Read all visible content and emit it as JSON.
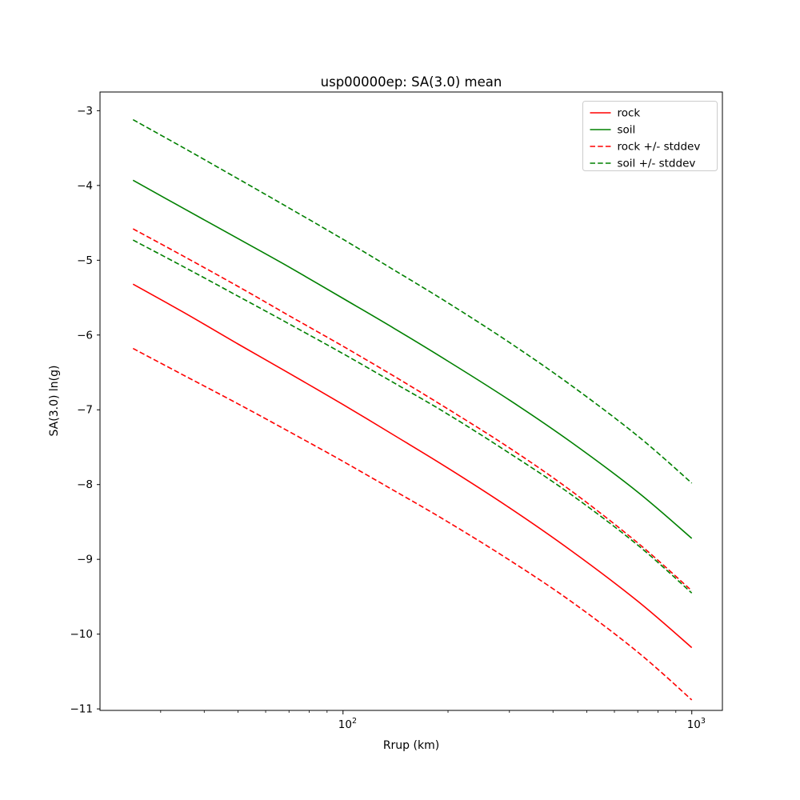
{
  "chart_data": {
    "type": "line",
    "title": "usp00000ep: SA(3.0) mean",
    "xlabel": "Rrup (km)",
    "ylabel": "SA(3.0) ln(g)",
    "x_scale": "log",
    "grid": false,
    "xlim": [
      20.1,
      1224
    ],
    "ylim": [
      -11.02,
      -2.75
    ],
    "x": [
      25,
      35,
      50,
      70,
      100,
      140,
      200,
      300,
      450,
      700,
      1000
    ],
    "series": [
      {
        "name": "rock",
        "color": "#ff0000",
        "dash": "solid",
        "values": [
          -5.32,
          -5.7,
          -6.12,
          -6.51,
          -6.93,
          -7.34,
          -7.78,
          -8.31,
          -8.88,
          -9.56,
          -10.18
        ]
      },
      {
        "name": "soil",
        "color": "#008000",
        "dash": "solid",
        "values": [
          -3.93,
          -4.31,
          -4.71,
          -5.09,
          -5.51,
          -5.91,
          -6.35,
          -6.87,
          -7.43,
          -8.1,
          -8.72
        ]
      },
      {
        "name": "rock + stddev",
        "color": "#ff0000",
        "dash": "dashed",
        "values": [
          -4.58,
          -4.95,
          -5.35,
          -5.74,
          -6.15,
          -6.55,
          -6.99,
          -7.51,
          -8.08,
          -8.78,
          -9.42
        ]
      },
      {
        "name": "rock - stddev",
        "color": "#ff0000",
        "dash": "dashed",
        "values": [
          -6.18,
          -6.54,
          -6.92,
          -7.29,
          -7.69,
          -8.08,
          -8.5,
          -9.01,
          -9.56,
          -10.24,
          -10.88
        ]
      },
      {
        "name": "soil + stddev",
        "color": "#008000",
        "dash": "dashed",
        "values": [
          -3.12,
          -3.5,
          -3.91,
          -4.3,
          -4.72,
          -5.13,
          -5.57,
          -6.1,
          -6.67,
          -7.35,
          -7.98
        ]
      },
      {
        "name": "soil - stddev",
        "color": "#008000",
        "dash": "dashed",
        "values": [
          -4.73,
          -5.09,
          -5.48,
          -5.85,
          -6.25,
          -6.64,
          -7.06,
          -7.58,
          -8.13,
          -8.81,
          -9.45
        ]
      }
    ],
    "legend": {
      "position": "upper right",
      "entries": [
        {
          "label": "rock",
          "color": "#ff0000",
          "dash": "solid"
        },
        {
          "label": "soil",
          "color": "#008000",
          "dash": "solid"
        },
        {
          "label": "rock +/- stddev",
          "color": "#ff0000",
          "dash": "dashed"
        },
        {
          "label": "soil +/- stddev",
          "color": "#008000",
          "dash": "dashed"
        }
      ]
    },
    "x_ticks": [
      {
        "value": 100,
        "base": "10",
        "exp": "2"
      },
      {
        "value": 1000,
        "base": "10",
        "exp": "3"
      }
    ],
    "y_ticks": [
      -3,
      -4,
      -5,
      -6,
      -7,
      -8,
      -9,
      -10,
      -11
    ],
    "colors": {
      "axes": "#000000",
      "legend_border": "#cccccc",
      "background": "#ffffff"
    }
  }
}
